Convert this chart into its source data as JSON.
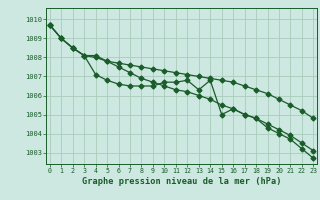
{
  "xlabel": "Graphe pression niveau de la mer (hPa)",
  "xlim": [
    -0.3,
    23.3
  ],
  "ylim": [
    1002.4,
    1010.6
  ],
  "yticks": [
    1003,
    1004,
    1005,
    1006,
    1007,
    1008,
    1009,
    1010
  ],
  "xticks": [
    0,
    1,
    2,
    3,
    4,
    5,
    6,
    7,
    8,
    9,
    10,
    11,
    12,
    13,
    14,
    15,
    16,
    17,
    18,
    19,
    20,
    21,
    22,
    23
  ],
  "background_color": "#cce8e0",
  "grid_color": "#aaccbb",
  "line_color": "#1a5c2a",
  "series1": [
    1009.7,
    1009.0,
    1008.5,
    1008.1,
    1008.1,
    1007.8,
    1007.5,
    1007.2,
    1006.9,
    1006.7,
    1006.5,
    1006.3,
    1006.2,
    1006.0,
    1005.8,
    1005.5,
    1005.3,
    1005.0,
    1004.8,
    1004.5,
    1004.2,
    1003.9,
    1003.5,
    1003.1
  ],
  "series2": [
    1009.7,
    1009.0,
    1008.5,
    1008.1,
    1007.1,
    1006.8,
    1006.6,
    1006.5,
    1006.5,
    1006.5,
    1006.7,
    1006.7,
    1006.8,
    1006.3,
    1006.8,
    1005.0,
    1005.3,
    1005.0,
    1004.8,
    1004.3,
    1004.0,
    1003.7,
    1003.2,
    1002.7
  ],
  "series3": [
    1009.7,
    1009.0,
    1008.5,
    1008.1,
    1008.0,
    1007.8,
    1007.7,
    1007.6,
    1007.5,
    1007.4,
    1007.3,
    1007.2,
    1007.1,
    1007.0,
    1006.9,
    1006.8,
    1006.7,
    1006.5,
    1006.3,
    1006.1,
    1005.8,
    1005.5,
    1005.2,
    1004.8
  ],
  "marker": "D",
  "marker_size": 2.5,
  "linewidth": 0.9
}
